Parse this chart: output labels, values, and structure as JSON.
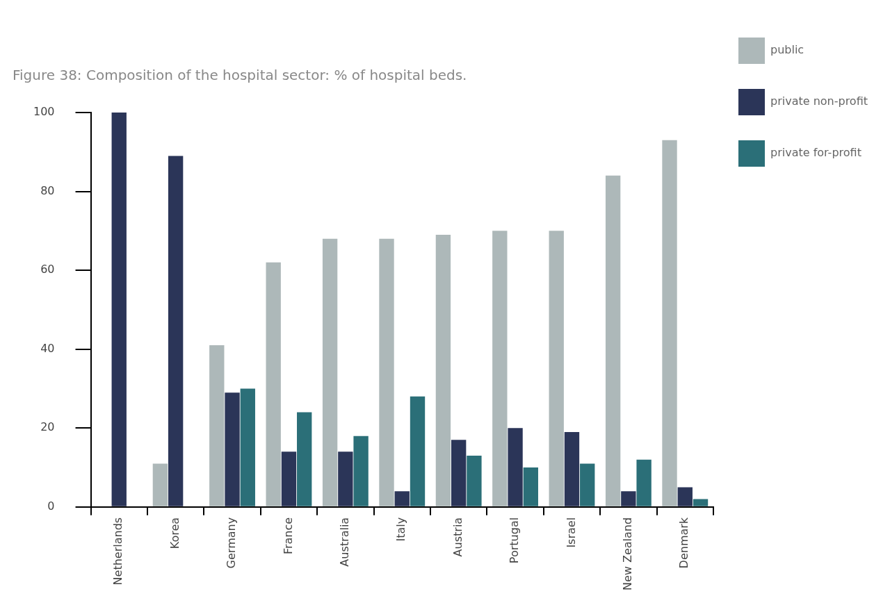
{
  "chart_data": {
    "type": "bar",
    "title": "Figure 38: Composition of the hospital sector: % of hospital beds.",
    "categories": [
      "Netherlands",
      "Korea",
      "Germany",
      "France",
      "Australia",
      "Italy",
      "Austria",
      "Portugal",
      "Israel",
      "New Zealand",
      "Denmark"
    ],
    "series": [
      {
        "name": "public",
        "color": "#adb8b9",
        "values": [
          0,
          11,
          41,
          62,
          68,
          68,
          69,
          70,
          70,
          84,
          93
        ]
      },
      {
        "name": "private non-profit",
        "color": "#2b3558",
        "values": [
          100,
          89,
          29,
          14,
          14,
          4,
          17,
          20,
          19,
          4,
          5
        ]
      },
      {
        "name": "private for-profit",
        "color": "#2b6f78",
        "values": [
          0,
          0,
          30,
          24,
          18,
          28,
          13,
          10,
          11,
          12,
          2
        ]
      }
    ],
    "ylim": [
      0,
      100
    ],
    "yticks": [
      0,
      20,
      40,
      60,
      80,
      100
    ],
    "grid": false,
    "legend": "top right"
  }
}
